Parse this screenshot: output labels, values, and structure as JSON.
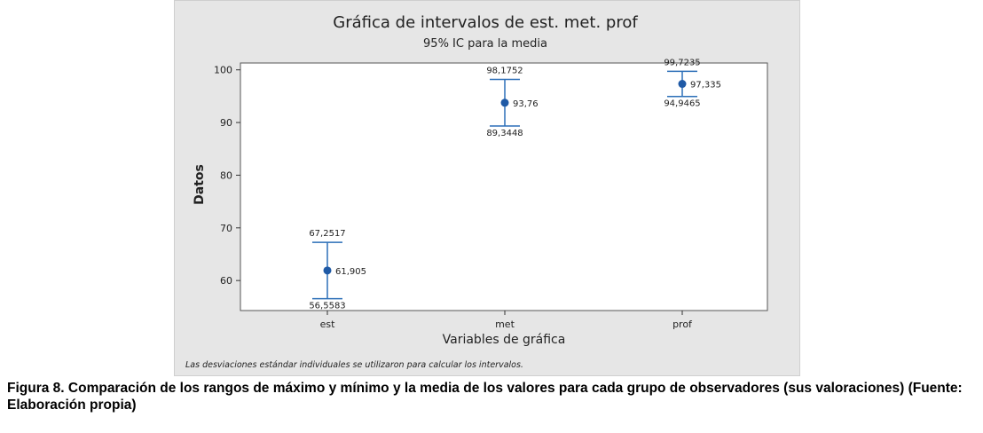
{
  "chart_data": {
    "type": "interval",
    "title": "Gráfica de intervalos de est. met. prof",
    "subtitle": "95% IC para la media",
    "xlabel": "Variables de gráfica",
    "ylabel": "Datos",
    "categories": [
      "est",
      "met",
      "prof"
    ],
    "means": [
      61.905,
      93.76,
      97.335
    ],
    "lower": [
      56.5583,
      89.3448,
      94.9465
    ],
    "upper": [
      67.2517,
      98.1752,
      99.7235
    ],
    "mean_labels": [
      "61,905",
      "93,76",
      "97,335"
    ],
    "lower_labels": [
      "56,5583",
      "89,3448",
      "94,9465"
    ],
    "upper_labels": [
      "67,2517",
      "98,1752",
      "99,7235"
    ],
    "yticks": [
      60,
      70,
      80,
      90,
      100
    ],
    "ylim": [
      54.3,
      101.3
    ],
    "grid": false,
    "legend": "none",
    "footnote": "Las desviaciones estándar individuales se utilizaron para calcular los intervalos.",
    "colors": {
      "marker": "#1f5aa6",
      "bar": "#2c6fb8",
      "panel": "#e6e6e6",
      "plot_bg": "#ffffff"
    }
  },
  "caption": "Figura 8. Comparación de los rangos de máximo y mínimo y la media de los valores para cada grupo de observadores (sus valoraciones) (Fuente: Elaboración propia)"
}
